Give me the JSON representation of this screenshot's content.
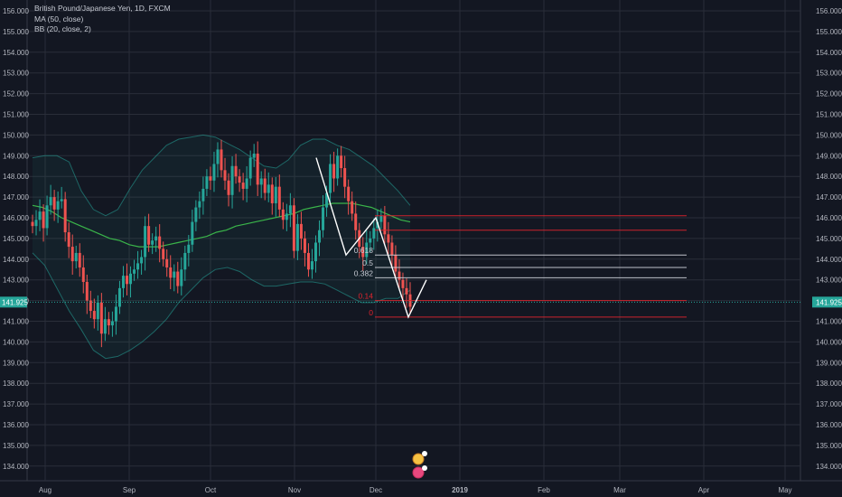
{
  "legend": {
    "symbol": "British Pound/Japanese Yen, 1D, FXCM",
    "ma": "MA (50, close)",
    "bb": "BB (20, close, 2)"
  },
  "colors": {
    "background": "#131722",
    "grid": "#2a2e39",
    "up": "#26a69a",
    "down": "#ef5350",
    "ma": "#3ab54a",
    "bb": "#26a69a",
    "fib_red": "#e0242e",
    "fib_white": "#d1d4dc",
    "current_price": "#26a69a",
    "pattern": "#ffffff"
  },
  "chart_data": {
    "type": "candlestick",
    "title": "British Pound/Japanese Yen, 1D, FXCM",
    "indicators": [
      "MA (50, close)",
      "BB (20, close, 2)"
    ],
    "ylim": [
      133.6,
      156.6
    ],
    "y_ticks": [
      "156.000",
      "155.000",
      "154.000",
      "153.000",
      "152.000",
      "151.000",
      "150.000",
      "149.000",
      "148.000",
      "147.000",
      "146.000",
      "145.000",
      "144.000",
      "143.000",
      "142.000",
      "141.000",
      "140.000",
      "139.000",
      "138.000",
      "137.000",
      "136.000",
      "135.000",
      "134.000"
    ],
    "x_ticks": [
      "Aug",
      "Sep",
      "Oct",
      "Nov",
      "Dec",
      "2019",
      "Feb",
      "Mar",
      "Apr",
      "May"
    ],
    "x_tick_dates": [
      "2018-08-01",
      "2018-09-01",
      "2018-10-01",
      "2018-11-01",
      "2018-12-01",
      "2019-01-01",
      "2019-02-01",
      "2019-03-01",
      "2019-04-01",
      "2019-05-01"
    ],
    "current_price": "141.925",
    "grid": true,
    "closes": [
      145.6,
      145.9,
      146.3,
      145.5,
      146.6,
      147.0,
      146.4,
      146.8,
      146.9,
      145.3,
      144.6,
      143.9,
      144.3,
      143.6,
      142.9,
      142.0,
      141.5,
      141.1,
      141.9,
      140.4,
      141.1,
      140.8,
      141.0,
      141.7,
      142.6,
      143.2,
      142.8,
      143.3,
      143.5,
      143.8,
      144.1,
      145.6,
      144.7,
      144.9,
      145.1,
      144.5,
      144.0,
      143.6,
      143.1,
      143.4,
      142.7,
      143.5,
      144.3,
      144.7,
      145.8,
      146.5,
      146.8,
      147.4,
      148.0,
      147.8,
      148.6,
      149.3,
      148.3,
      147.8,
      147.1,
      148.5,
      148.0,
      147.7,
      147.4,
      147.9,
      148.9,
      149.1,
      147.6,
      147.9,
      147.2,
      147.6,
      146.7,
      147.5,
      146.4,
      145.9,
      146.2,
      146.6,
      144.4,
      145.7,
      145.0,
      144.3,
      143.5,
      143.9,
      144.8,
      145.4,
      146.5,
      147.2,
      148.6,
      147.9,
      149.0,
      148.4,
      147.5,
      146.8,
      146.2,
      145.4,
      144.6,
      144.1,
      144.8,
      145.0,
      145.5,
      145.8,
      146.1,
      145.2,
      144.8,
      144.2,
      143.4,
      143.0,
      142.6,
      142.3,
      141.7
    ],
    "ma50": [
      146.6,
      146.5,
      146.3,
      146.0,
      145.8,
      145.6,
      145.4,
      145.2,
      145.0,
      144.9,
      144.7,
      144.6,
      144.6,
      144.6,
      144.7,
      144.8,
      144.9,
      145.0,
      145.1,
      145.3,
      145.4,
      145.6,
      145.7,
      145.8,
      145.9,
      146.0,
      146.1,
      146.2,
      146.4,
      146.5,
      146.6,
      146.7,
      146.7,
      146.7,
      146.6,
      146.5,
      146.3,
      146.1,
      145.9,
      145.8
    ],
    "bb_upper": [
      148.9,
      149.0,
      149.0,
      148.7,
      147.3,
      146.4,
      146.1,
      146.4,
      147.4,
      148.3,
      148.9,
      149.5,
      149.8,
      149.9,
      150.0,
      149.9,
      149.6,
      149.3,
      148.9,
      148.5,
      148.4,
      148.8,
      149.5,
      149.8,
      149.8,
      149.5,
      149.3,
      148.9,
      148.5,
      147.9,
      147.3,
      146.6
    ],
    "bb_lower": [
      144.3,
      143.7,
      142.6,
      141.5,
      140.6,
      139.6,
      139.2,
      139.3,
      139.6,
      140.0,
      140.5,
      141.1,
      141.9,
      142.5,
      143.1,
      143.5,
      143.6,
      143.4,
      143.0,
      142.7,
      142.7,
      142.8,
      142.9,
      142.9,
      142.8,
      142.5,
      142.2,
      141.9,
      141.9,
      142.1,
      142.1,
      142.5
    ],
    "fibonacci": [
      {
        "label": "0.618",
        "price": 144.2,
        "color": "white"
      },
      {
        "label": "0.5",
        "price": 143.6,
        "color": "white"
      },
      {
        "label": "0.382",
        "price": 143.1,
        "color": "white"
      },
      {
        "label": "0.14",
        "price": 142.0,
        "color": "red"
      },
      {
        "label": "0",
        "price": 141.2,
        "color": "red"
      },
      {
        "label": "",
        "price": 145.4,
        "color": "red"
      },
      {
        "label": "",
        "price": 146.1,
        "color": "red"
      }
    ],
    "pattern_points": [
      [
        148.9,
        0
      ],
      [
        144.2,
        0
      ],
      [
        146.0,
        0
      ],
      [
        141.2,
        0
      ],
      [
        143.0,
        0
      ]
    ]
  }
}
